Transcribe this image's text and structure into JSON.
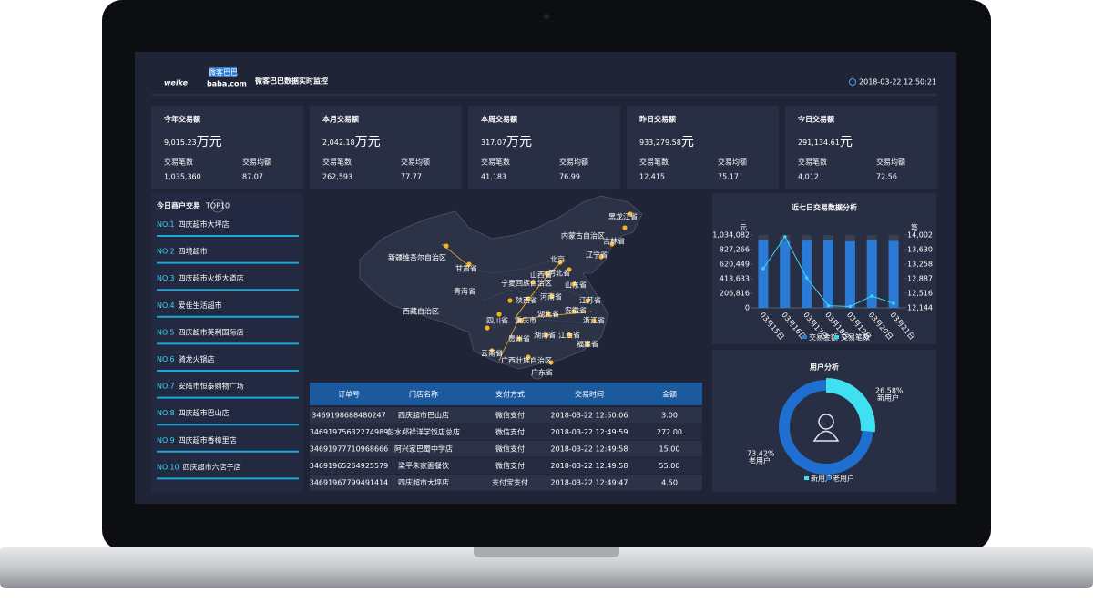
{
  "header": {
    "logo": {
      "main": "weike",
      "suffix": "baba.com",
      "badge": "微客巴巴"
    },
    "title": "微客巴巴数据实时监控",
    "datetime": "2018-03-22 12:50:21"
  },
  "kpis": [
    {
      "title": "今年交易额",
      "value": "9,015.23",
      "unit": "万元",
      "count_label": "交易笔数",
      "count": "1,035,360",
      "avg_label": "交易均额",
      "avg": "87.07"
    },
    {
      "title": "本月交易额",
      "value": "2,042.18",
      "unit": "万元",
      "count_label": "交易笔数",
      "count": "262,593",
      "avg_label": "交易均额",
      "avg": "77.77"
    },
    {
      "title": "本周交易额",
      "value": "317.07",
      "unit": "万元",
      "count_label": "交易笔数",
      "count": "41,183",
      "avg_label": "交易均额",
      "avg": "76.99"
    },
    {
      "title": "昨日交易额",
      "value": "933,279.58",
      "unit": "元",
      "count_label": "交易笔数",
      "count": "12,415",
      "avg_label": "交易均额",
      "avg": "75.17"
    },
    {
      "title": "今日交易额",
      "value": "291,134.61",
      "unit": "元",
      "count_label": "交易笔数",
      "count": "4,012",
      "avg_label": "交易均额",
      "avg": "72.56"
    }
  ],
  "ranking": {
    "title": "今日商户交易",
    "badge": "TOP10",
    "items": [
      {
        "rank": "NO.1",
        "name": "四庆超市大坪店"
      },
      {
        "rank": "NO.2",
        "name": "四境超市"
      },
      {
        "rank": "NO.3",
        "name": "四庆超市火炬大道店"
      },
      {
        "rank": "NO.4",
        "name": "爱佳生活超市"
      },
      {
        "rank": "NO.5",
        "name": "四庆超市英利国际店"
      },
      {
        "rank": "NO.6",
        "name": "骑龙火锅店"
      },
      {
        "rank": "NO.7",
        "name": "安陆市恒泰购物广场"
      },
      {
        "rank": "NO.8",
        "name": "四庆超市巴山店"
      },
      {
        "rank": "NO.9",
        "name": "四庆超市香樟里店"
      },
      {
        "rank": "NO.10",
        "name": "四庆超市六店子店"
      }
    ]
  },
  "map": {
    "labels": [
      "黑龙江省",
      "吉林省",
      "内蒙古自治区",
      "辽宁省",
      "北京",
      "河北省",
      "山西省",
      "山东省",
      "宁夏回族自治区",
      "甘肃省",
      "新疆维吾尔自治区",
      "青海省",
      "西藏自治区",
      "陕西省",
      "河南省",
      "江苏省",
      "安徽省",
      "湖北省",
      "四川省",
      "重庆市",
      "浙江省",
      "贵州省",
      "湖南省",
      "江西省",
      "福建省",
      "云南省",
      "广西壮族自治区",
      "广东省"
    ]
  },
  "table": {
    "headers": [
      "订单号",
      "门店名称",
      "支付方式",
      "交易时间",
      "金额"
    ],
    "rows": [
      [
        "3469198688480247",
        "四庆超市巴山店",
        "微信支付",
        "2018-03-22 12:50:06",
        "3.00"
      ],
      [
        "34691975632274989",
        "彭水郑祥洋学饭店总店",
        "微信支付",
        "2018-03-22 12:49:59",
        "272.00"
      ],
      [
        "34691977710968666",
        "阿兴家巴蜀中学店",
        "微信支付",
        "2018-03-22 12:49:58",
        "15.00"
      ],
      [
        "34691965264925579",
        "梁平朱家面餐饮",
        "微信支付",
        "2018-03-22 12:49:58",
        "55.00"
      ],
      [
        "34691967799491414",
        "四庆超市大坪店",
        "支付宝支付",
        "2018-03-22 12:49:47",
        "4.50"
      ]
    ]
  },
  "chart_data": [
    {
      "type": "bar-line",
      "title": "近七日交易数据分析",
      "y_unit": "元",
      "y2_unit": "笔",
      "categories": [
        "03月15日",
        "03月16日",
        "03月17日",
        "03月18日",
        "03月19日",
        "03月20日",
        "03月21日"
      ],
      "series": [
        {
          "name": "交易金额",
          "color": "#2b7bd6",
          "type": "bar",
          "values": [
            960000,
            950000,
            955000,
            965000,
            945000,
            960000,
            950000
          ]
        },
        {
          "name": "交易笔数",
          "color": "#3fd3f0",
          "type": "line",
          "axis": "y2",
          "values": [
            13143,
            13956,
            12910,
            12200,
            12180,
            12446,
            12260
          ]
        }
      ],
      "ylim": [
        0,
        1034082
      ],
      "yticks": [
        0,
        {
          "value": 206816,
          "label": "206,816"
        },
        {
          "value": 413633,
          "label": "413,633"
        },
        {
          "value": 620449,
          "label": "620,449"
        },
        {
          "value": 827266,
          "label": "827,266"
        },
        {
          "value": 1034082,
          "label": "1,034,082"
        }
      ],
      "y2lim": [
        12144,
        14002
      ],
      "y2ticks": [
        {
          "value": 12144,
          "label": "12,144"
        },
        {
          "value": 12516,
          "label": "12,516"
        },
        {
          "value": 12887,
          "label": "12,887"
        },
        {
          "value": 13258,
          "label": "13,258"
        },
        {
          "value": 13630,
          "label": "13,630"
        },
        {
          "value": 14002,
          "label": "14,002"
        }
      ]
    },
    {
      "type": "pie",
      "title": "用户分析",
      "categories": [
        "新用户",
        "老用户"
      ],
      "values": [
        26.58,
        73.42
      ],
      "value_labels": [
        "26.58%",
        "73.42%"
      ],
      "colors": [
        "#3fe0f0",
        "#1f6fd1"
      ]
    }
  ]
}
